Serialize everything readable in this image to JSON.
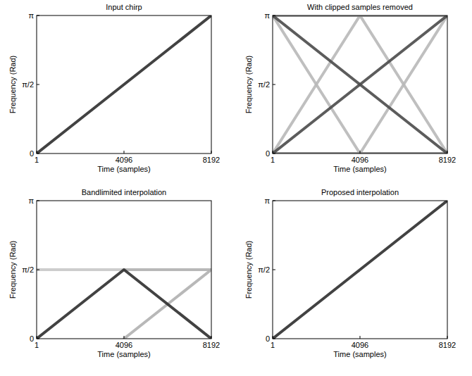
{
  "chart_data": [
    {
      "type": "line",
      "title": "Input chirp",
      "x_label": "Time (samples)",
      "y_label": "Frequency (Rad)",
      "x": [
        1,
        2048,
        4096,
        6144,
        8192
      ],
      "xlim": [
        1,
        8192
      ],
      "xticks": [
        1,
        4096,
        8192
      ],
      "ylim": [
        0,
        3.1416
      ],
      "yticks": [
        0,
        {
          "value": 1.5708,
          "label": "π/2"
        },
        {
          "value": 3.1416,
          "label": "π"
        }
      ],
      "grid": false,
      "series": [
        {
          "color": "#2e2e2e",
          "values": [
            0,
            0.7854,
            1.5708,
            2.3562,
            3.1416
          ]
        }
      ]
    },
    {
      "type": "line",
      "title": "With clipped samples removed",
      "x_label": "Time (samples)",
      "y_label": "Frequency (Rad)",
      "x": [
        1,
        2048,
        4096,
        6144,
        8192
      ],
      "xlim": [
        1,
        8192
      ],
      "xticks": [
        1,
        4096,
        8192
      ],
      "ylim": [
        0,
        3.1416
      ],
      "yticks": [
        0,
        {
          "value": 1.5708,
          "label": "π/2"
        },
        {
          "value": 3.1416,
          "label": "π"
        }
      ],
      "grid": false,
      "series": [
        {
          "color": "#b8b8b8",
          "values": [
            0,
            1.5708,
            3.1416,
            null,
            null
          ]
        },
        {
          "color": "#b8b8b8",
          "values": [
            null,
            null,
            3.1416,
            1.5708,
            0
          ]
        },
        {
          "color": "#b8b8b8",
          "values": [
            3.1416,
            1.5708,
            0,
            null,
            null
          ]
        },
        {
          "color": "#b8b8b8",
          "values": [
            null,
            null,
            0,
            1.5708,
            3.1416
          ]
        },
        {
          "color": "#8a8a8a",
          "values": [
            3.1416,
            3.1416,
            3.1416,
            3.1416,
            3.1416
          ]
        },
        {
          "color": "#8a8a8a",
          "values": [
            0,
            0,
            0,
            0,
            0
          ]
        },
        {
          "color": "#4a4a4a",
          "values": [
            0,
            0.7854,
            1.5708,
            2.3562,
            3.1416
          ]
        },
        {
          "color": "#4a4a4a",
          "values": [
            3.1416,
            2.3562,
            1.5708,
            0.7854,
            0
          ]
        }
      ]
    },
    {
      "type": "line",
      "title": "Bandlimited interpolation",
      "x_label": "Time (samples)",
      "y_label": "Frequency (Rad)",
      "x": [
        1,
        2048,
        4096,
        6144,
        8192
      ],
      "xlim": [
        1,
        8192
      ],
      "xticks": [
        1,
        4096,
        8192
      ],
      "ylim": [
        0,
        3.1416
      ],
      "yticks": [
        0,
        {
          "value": 1.5708,
          "label": "π/2"
        },
        {
          "value": 3.1416,
          "label": "π"
        }
      ],
      "grid": false,
      "series": [
        {
          "color": "#c8c8c8",
          "values": [
            1.5708,
            1.5708,
            1.5708,
            null,
            null
          ]
        },
        {
          "color": "#b0b0b0",
          "values": [
            null,
            null,
            0,
            0.7854,
            1.5708
          ]
        },
        {
          "color": "#b0b0b0",
          "values": [
            null,
            null,
            1.5708,
            1.5708,
            1.5708
          ]
        },
        {
          "color": "#2e2e2e",
          "values": [
            0,
            0.7854,
            1.5708,
            0.7854,
            0
          ]
        }
      ]
    },
    {
      "type": "line",
      "title": "Proposed interpolation",
      "x_label": "Time (samples)",
      "y_label": "Frequency (Rad)",
      "x": [
        1,
        2048,
        4096,
        6144,
        8192
      ],
      "xlim": [
        1,
        8192
      ],
      "xticks": [
        1,
        4096,
        8192
      ],
      "ylim": [
        0,
        3.1416
      ],
      "yticks": [
        0,
        {
          "value": 1.5708,
          "label": "π/2"
        },
        {
          "value": 3.1416,
          "label": "π"
        }
      ],
      "grid": false,
      "series": [
        {
          "color": "#2e2e2e",
          "values": [
            0,
            0.7854,
            1.5708,
            2.3562,
            3.1416
          ]
        }
      ]
    }
  ]
}
